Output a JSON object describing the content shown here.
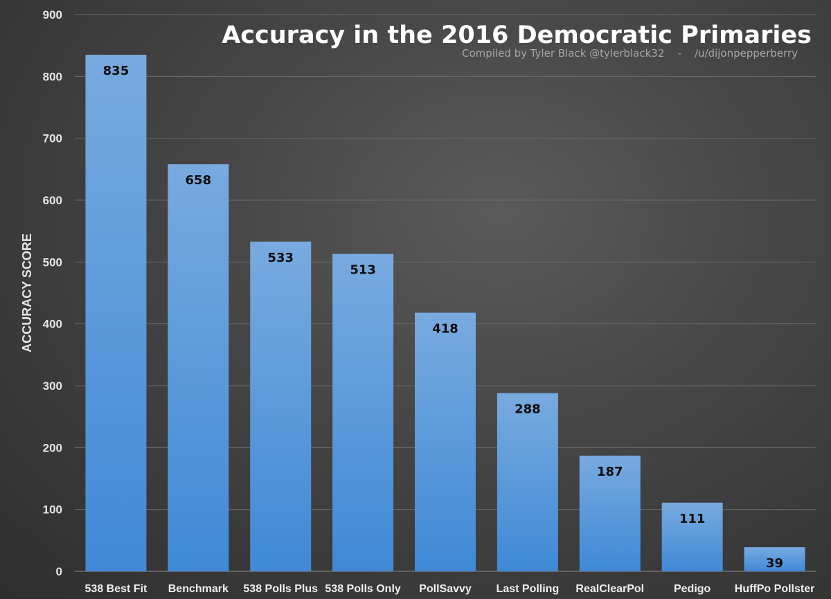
{
  "chart_data": {
    "type": "bar",
    "title": "Accuracy in the 2016 Democratic Primaries",
    "subtitle": "Compiled by Tyler Black @tylerblack32    -    /u/dijonpepperberry",
    "xlabel": "",
    "ylabel": "ACCURACY SCORE",
    "ylim": [
      0,
      900
    ],
    "yticks": [
      0,
      100,
      200,
      300,
      400,
      500,
      600,
      700,
      800,
      900
    ],
    "grid": true,
    "categories": [
      "538 Best Fit",
      "Benchmark",
      "538 Polls Plus",
      "538 Polls Only",
      "PollSavvy",
      "Last Polling",
      "RealClearPol",
      "Pedigo",
      "HuffPo Pollster"
    ],
    "values": [
      835,
      658,
      533,
      513,
      418,
      288,
      187,
      111,
      39
    ],
    "data_labels": [
      "835",
      "658",
      "533",
      "513",
      "418",
      "288",
      "187",
      "111",
      "39"
    ],
    "colors": {
      "bar_top": "#78aadf",
      "bar_bottom": "#3f89d6",
      "background": "#444444",
      "title": "#ffffff",
      "subtitle": "#a6a6a6"
    }
  }
}
